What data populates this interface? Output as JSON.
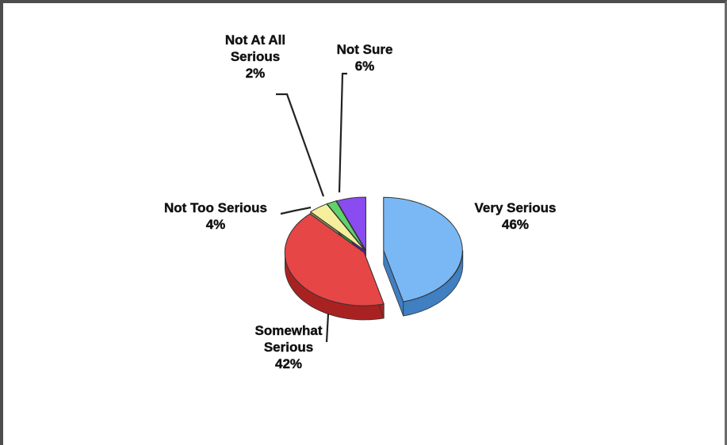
{
  "chart_data": {
    "type": "pie",
    "slices": [
      {
        "label_lines": [
          "Very Serious",
          "46%"
        ],
        "value": 46,
        "color": "#7ab8f5",
        "side_color": "#3f7fc2",
        "exploded": true
      },
      {
        "label_lines": [
          "Somewhat",
          "Serious",
          "42%"
        ],
        "value": 42,
        "color": "#e64646",
        "side_color": "#a82222",
        "exploded": false
      },
      {
        "label_lines": [
          "Not Too Serious",
          "4%"
        ],
        "value": 4,
        "color": "#f5ee9c",
        "side_color": "#8c8554",
        "exploded": false
      },
      {
        "label_lines": [
          "Not At All",
          "Serious",
          "2%"
        ],
        "value": 2,
        "color": "#5fd36a",
        "side_color": "#2e8c36",
        "exploded": false
      },
      {
        "label_lines": [
          "Not Sure",
          "6%"
        ],
        "value": 6,
        "color": "#8a4cf0",
        "side_color": "#4d1fa6",
        "exploded": false
      }
    ],
    "start_angle_deg": -90,
    "three_d": true,
    "legend": "none"
  }
}
